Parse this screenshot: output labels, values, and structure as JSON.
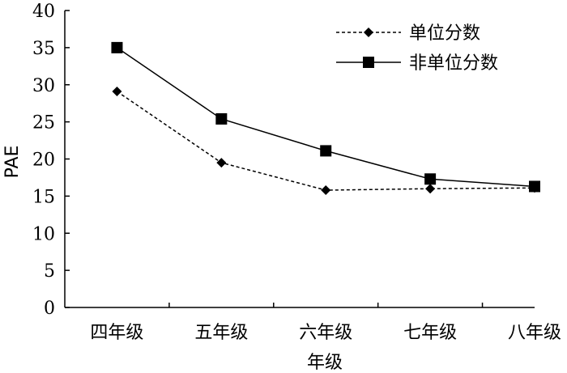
{
  "chart_data": {
    "type": "line",
    "categories": [
      "四年级",
      "五年级",
      "六年级",
      "七年级",
      "八年级"
    ],
    "xlabel": "年级",
    "ylabel": "PAE",
    "ylim": [
      0,
      40
    ],
    "yticks": [
      0,
      5,
      10,
      15,
      20,
      25,
      30,
      35,
      40
    ],
    "legend_position": "top-right",
    "grid": false,
    "series": [
      {
        "name": "单位分数",
        "values": [
          29.1,
          19.5,
          15.8,
          16.0,
          16.1
        ],
        "line_style": "dashed",
        "marker": "diamond",
        "color": "#000000"
      },
      {
        "name": "非单位分数",
        "values": [
          35.0,
          25.4,
          21.1,
          17.3,
          16.3
        ],
        "line_style": "solid",
        "marker": "square",
        "color": "#000000"
      }
    ]
  }
}
